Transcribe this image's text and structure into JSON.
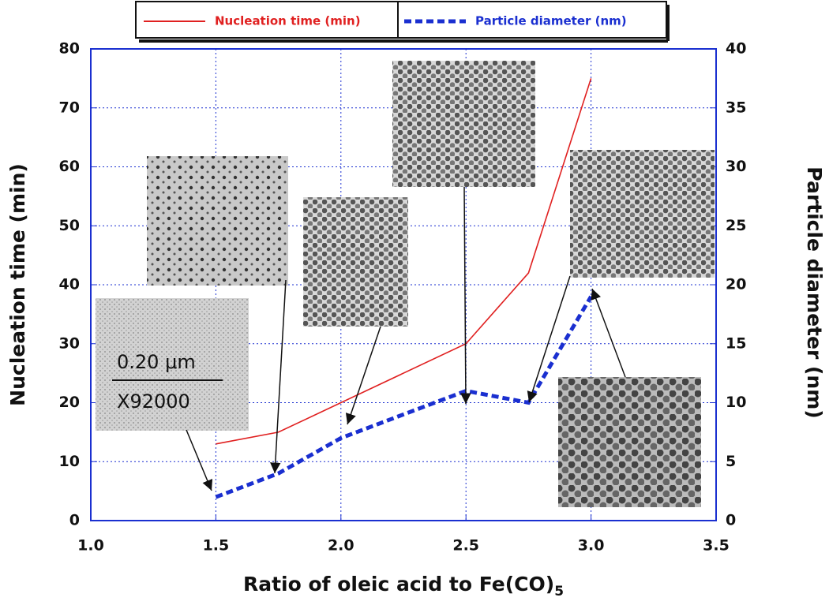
{
  "chart_data": {
    "type": "line",
    "xlabel": {
      "text": "Ratio of oleic acid to Fe(CO)",
      "subscript": "5"
    },
    "ylabel": "Nucleation time (min)",
    "y2label": "Particle diameter (nm)",
    "x": [
      1.5,
      1.75,
      2.0,
      2.5,
      2.75,
      3.0
    ],
    "series": [
      {
        "name": "Nucleation time (min)",
        "color": "#e02020",
        "style": "solid",
        "values": [
          13,
          15,
          20,
          30,
          42,
          75
        ]
      },
      {
        "name": "Particle diameter (nm)",
        "color": "#1a2fd0",
        "style": "dashed",
        "axis": "y2",
        "values": [
          2,
          4,
          7,
          11,
          10,
          19
        ]
      }
    ],
    "xlim": [
      1.0,
      3.5
    ],
    "xticks": [
      {
        "value": 1,
        "label": "1.0"
      },
      1.5,
      {
        "value": 2,
        "label": "2.0"
      },
      2.5,
      {
        "value": 3,
        "label": "3.0"
      },
      3.5
    ],
    "ylim": [
      0,
      80
    ],
    "yticks": [
      0,
      10,
      20,
      30,
      40,
      50,
      60,
      70,
      80
    ],
    "y2lim": [
      0,
      40
    ],
    "y2ticks": [
      0,
      5,
      10,
      15,
      20,
      25,
      30,
      35,
      40
    ],
    "grid": true,
    "legend": "top",
    "annotations": [
      "0.20 μm",
      "X92000"
    ]
  }
}
